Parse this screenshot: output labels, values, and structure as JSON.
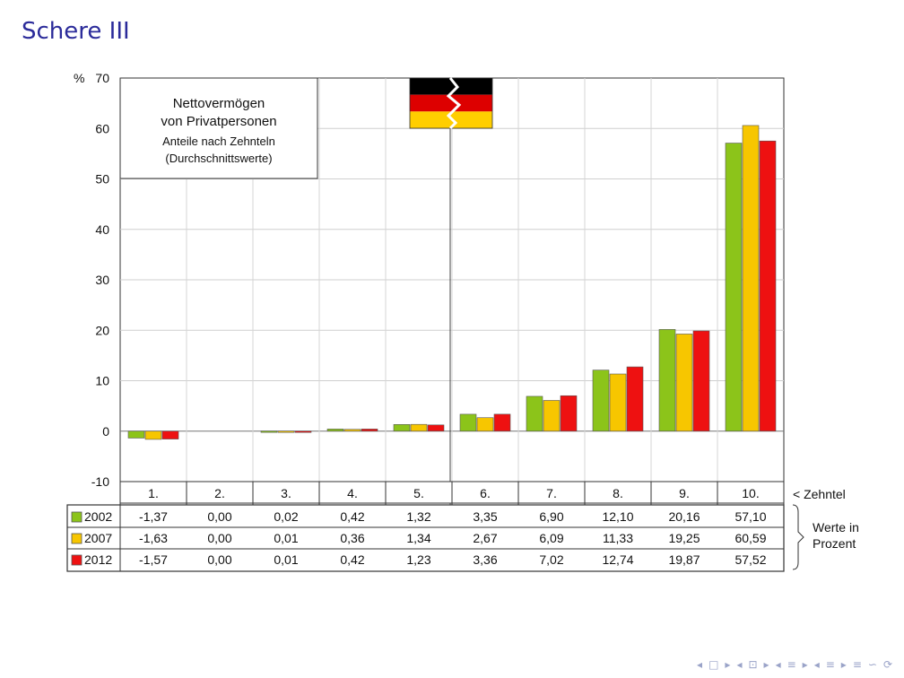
{
  "slide": {
    "title": "Schere III"
  },
  "chart_data": {
    "type": "bar",
    "title_lines": [
      "Nettovermögen",
      "von Privatpersonen"
    ],
    "subtitle_lines": [
      "Anteile nach Zehnteln",
      "(Durchschnittswerte)"
    ],
    "ylabel": "%",
    "ylim": [
      -10,
      70
    ],
    "yticks": [
      -10,
      0,
      10,
      20,
      30,
      40,
      50,
      60,
      70
    ],
    "ytick_labels": [
      "-10",
      "0",
      "10",
      "20",
      "30",
      "40",
      "50",
      "60",
      "70"
    ],
    "grid": true,
    "categories": [
      "1.",
      "2.",
      "3.",
      "4.",
      "5.",
      "6.",
      "7.",
      "8.",
      "9.",
      "10."
    ],
    "category_suffix": "< Zehntel",
    "values_note": [
      "Werte in",
      "Prozent"
    ],
    "series": [
      {
        "name": "2002",
        "color": "#8cc41a",
        "values": [
          -1.37,
          0.0,
          0.02,
          0.42,
          1.32,
          3.35,
          6.9,
          12.1,
          20.16,
          57.1
        ],
        "labels": [
          "-1,37",
          "0,00",
          "0,02",
          "0,42",
          "1,32",
          "3,35",
          "6,90",
          "12,10",
          "20,16",
          "57,10"
        ]
      },
      {
        "name": "2007",
        "color": "#f7c600",
        "values": [
          -1.63,
          0.0,
          0.01,
          0.36,
          1.34,
          2.67,
          6.09,
          11.33,
          19.25,
          60.59
        ],
        "labels": [
          "-1,63",
          "0,00",
          "0,01",
          "0,36",
          "1,34",
          "2,67",
          "6,09",
          "11,33",
          "19,25",
          "60,59"
        ]
      },
      {
        "name": "2012",
        "color": "#ee1111",
        "values": [
          -1.57,
          0.0,
          0.01,
          0.42,
          1.23,
          3.36,
          7.02,
          12.74,
          19.87,
          57.52
        ],
        "labels": [
          "-1,57",
          "0,00",
          "0,01",
          "0,42",
          "1,23",
          "3,36",
          "7,02",
          "12,74",
          "19,87",
          "57,52"
        ]
      }
    ],
    "flag_colors": [
      "#000000",
      "#dd0000",
      "#ffce00"
    ]
  },
  "nav": {
    "icons": [
      "◂",
      "□",
      "▸",
      "◂",
      "⊡",
      "▸",
      "◂",
      "≡",
      "▸",
      "◂",
      "≡",
      "▸",
      "≡",
      "∽",
      "⟳"
    ]
  }
}
